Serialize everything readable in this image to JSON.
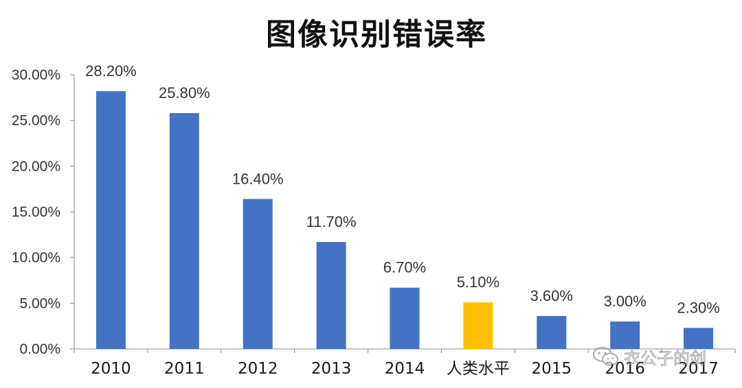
{
  "chart_data": {
    "type": "bar",
    "title": "图像识别错误率",
    "categories": [
      "2010",
      "2011",
      "2012",
      "2013",
      "2014",
      "人类水平",
      "2015",
      "2016",
      "2017"
    ],
    "values": [
      28.2,
      25.8,
      16.4,
      11.7,
      6.7,
      5.1,
      3.6,
      3.0,
      2.3
    ],
    "data_labels": [
      "28.20%",
      "25.80%",
      "16.40%",
      "11.70%",
      "6.70%",
      "5.10%",
      "3.60%",
      "3.00%",
      "2.30%"
    ],
    "highlight_category": "人类水平",
    "ylim": [
      0,
      30
    ],
    "yticks": [
      0,
      5,
      10,
      15,
      20,
      25,
      30
    ],
    "ytick_labels": [
      "0.00%",
      "5.00%",
      "10.00%",
      "15.00%",
      "20.00%",
      "25.00%",
      "30.00%"
    ],
    "xlabel": "",
    "ylabel": "",
    "grid": false,
    "colors": {
      "bar": "#4472c4",
      "highlight": "#ffc000",
      "axis": "#888888"
    }
  },
  "watermark": {
    "text": "衣公子的剑",
    "icon": "wechat-icon"
  }
}
